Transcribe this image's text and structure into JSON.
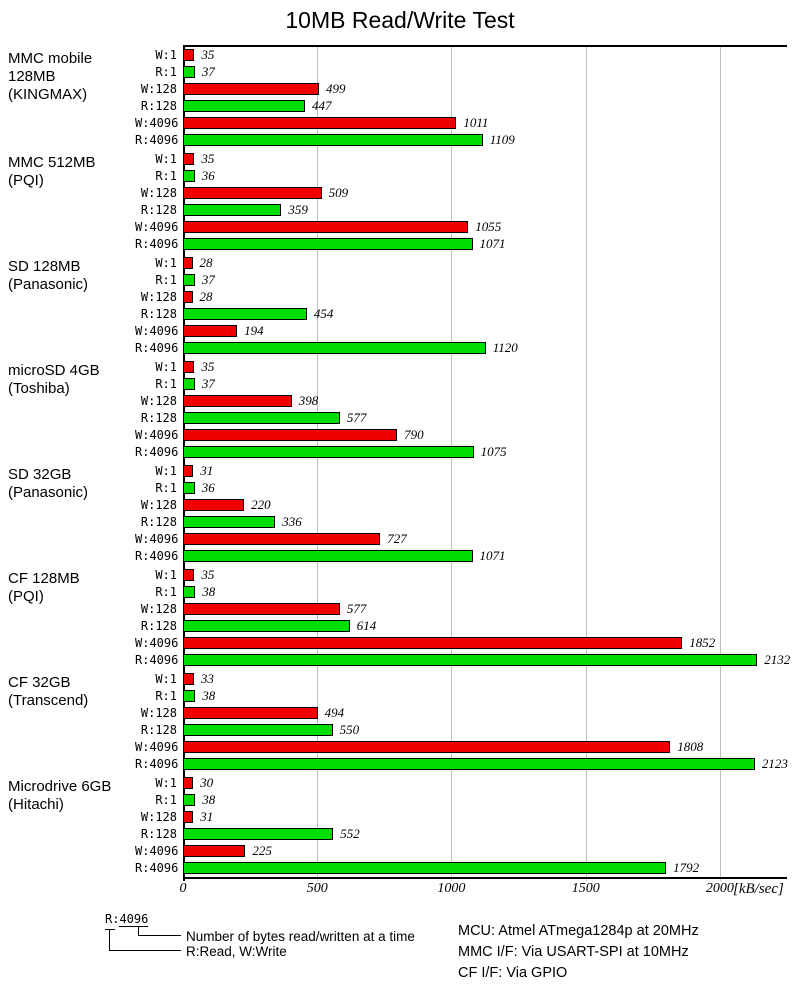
{
  "title": "10MB Read/Write Test",
  "chart_data": {
    "type": "bar",
    "orientation": "horizontal",
    "title": "10MB Read/Write Test",
    "xlabel": "[kB/sec]",
    "x_ticks": [
      0,
      500,
      1000,
      1500,
      2000
    ],
    "x_max": 2250,
    "grid": "vertical-lines",
    "categories": [
      "W:1",
      "R:1",
      "W:128",
      "R:128",
      "W:4096",
      "R:4096"
    ],
    "series_colors": {
      "write": "#ee0000",
      "read": "#00dd00"
    },
    "gridline_color": "#bfbfbf",
    "groups": [
      {
        "label_lines": [
          "MMC mobile",
          "128MB",
          "(KINGMAX)"
        ],
        "values": [
          35,
          37,
          499,
          447,
          1011,
          1109
        ]
      },
      {
        "label_lines": [
          "MMC 512MB",
          "(PQI)"
        ],
        "values": [
          35,
          36,
          509,
          359,
          1055,
          1071
        ]
      },
      {
        "label_lines": [
          "SD 128MB",
          "(Panasonic)"
        ],
        "values": [
          28,
          37,
          28,
          454,
          194,
          1120
        ]
      },
      {
        "label_lines": [
          "microSD 4GB",
          "(Toshiba)"
        ],
        "values": [
          35,
          37,
          398,
          577,
          790,
          1075
        ]
      },
      {
        "label_lines": [
          "SD 32GB",
          "(Panasonic)"
        ],
        "values": [
          31,
          36,
          220,
          336,
          727,
          1071
        ]
      },
      {
        "label_lines": [
          "CF 128MB",
          "(PQI)"
        ],
        "values": [
          35,
          38,
          577,
          614,
          1852,
          2132
        ]
      },
      {
        "label_lines": [
          "CF 32GB",
          "(Transcend)"
        ],
        "values": [
          33,
          38,
          494,
          550,
          1808,
          2123
        ]
      },
      {
        "label_lines": [
          "Microdrive 6GB",
          "(Hitachi)"
        ],
        "values": [
          30,
          38,
          31,
          552,
          225,
          1792
        ]
      }
    ]
  },
  "axis": {
    "unit_label": "[kB/sec]"
  },
  "legend": {
    "sample_prefix": "R:",
    "sample_number": "4096",
    "callout_bytes": "Number of bytes read/written at a time",
    "callout_rw": "R:Read, W:Write"
  },
  "notes": [
    "MCU: Atmel ATmega1284p at 20MHz",
    "MMC I/F: Via USART-SPI at 10MHz",
    "CF I/F: Via GPIO"
  ]
}
